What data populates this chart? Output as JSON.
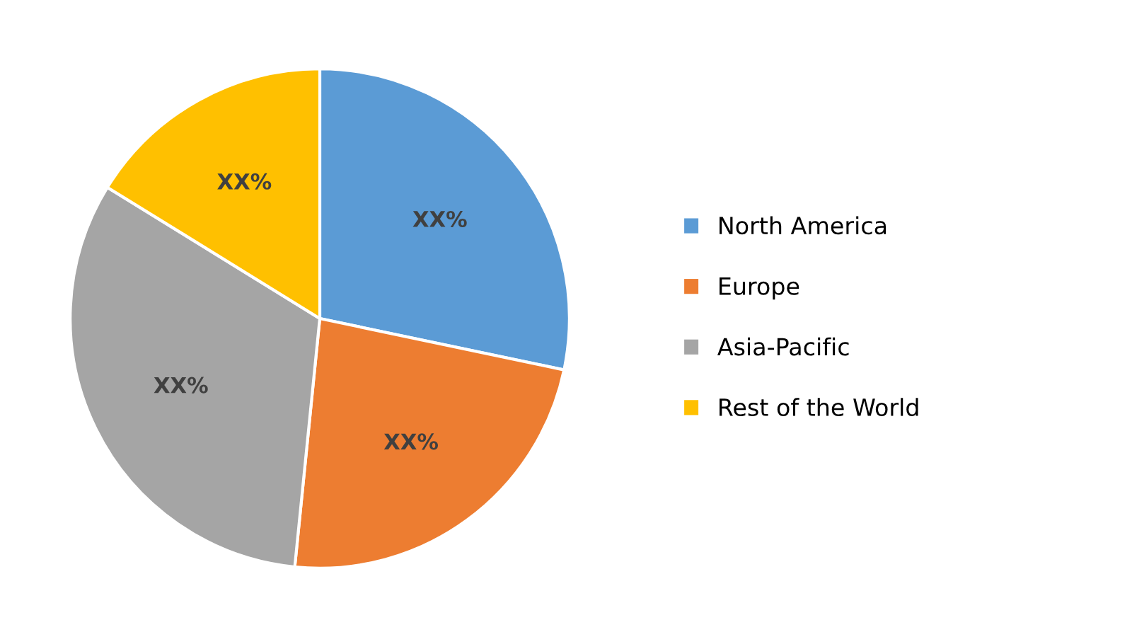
{
  "chart_data": {
    "type": "pie",
    "categories": [
      "North America",
      "Europe",
      "Asia-Pacific",
      "Rest of the World"
    ],
    "values": [
      28.3,
      23.3,
      32.2,
      16.2
    ],
    "colors": [
      "#5b9bd5",
      "#ed7d31",
      "#a5a5a5",
      "#ffc000"
    ],
    "value_labels": [
      "XX%",
      "XX%",
      "XX%",
      "XX%"
    ],
    "legend": "right"
  }
}
